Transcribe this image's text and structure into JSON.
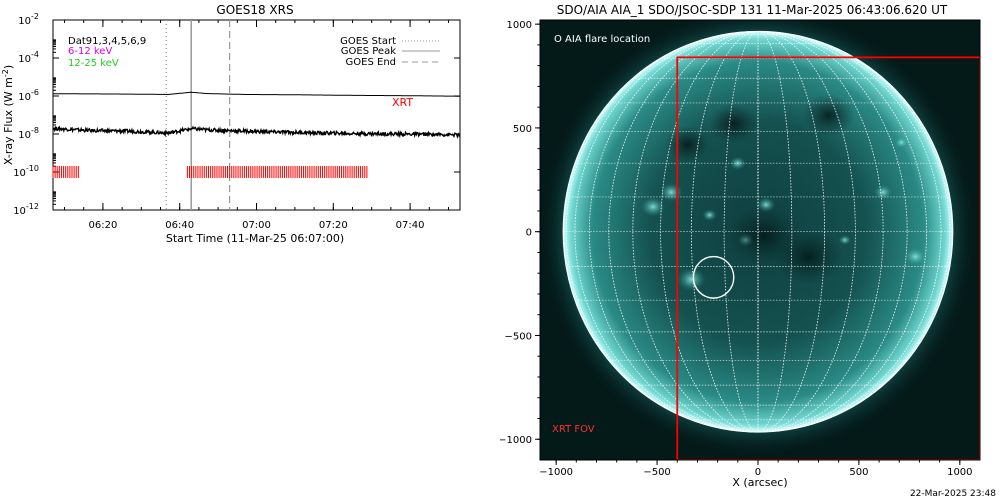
{
  "timestamp": "22-Mar-2025 23:48",
  "chart_data": [
    {
      "type": "line",
      "title": "GOES18 XRS",
      "xlabel": "Start Time (11-Mar-25 06:07:00)",
      "ylabel": "X-ray Flux (W m^-2)",
      "ylabel_main": "X-ray Flux (W m",
      "ylabel_exp": "-2",
      "ylabel_close": ")",
      "y_scale": "log",
      "ylim": [
        1e-12,
        0.01
      ],
      "x_unit": "minutes since 06:07:00",
      "xlim": [
        0,
        106
      ],
      "x_ticks": [
        {
          "value": 13,
          "label": "06:20"
        },
        {
          "value": 33,
          "label": "06:40"
        },
        {
          "value": 53,
          "label": "07:00"
        },
        {
          "value": 73,
          "label": "07:20"
        },
        {
          "value": 93,
          "label": "07:40"
        }
      ],
      "y_ticks": [
        {
          "value": -12,
          "base": "10",
          "exp": "-12"
        },
        {
          "value": -10,
          "base": "10",
          "exp": "-10"
        },
        {
          "value": -8,
          "base": "10",
          "exp": "-8"
        },
        {
          "value": -6,
          "base": "10",
          "exp": "-6"
        },
        {
          "value": -4,
          "base": "10",
          "exp": "-4"
        },
        {
          "value": -2,
          "base": "10",
          "exp": "-2"
        }
      ],
      "info_lines": [
        {
          "text": "Dat91,3,4,5,6,9",
          "color": "#000000"
        },
        {
          "text": "6-12 keV",
          "color": "#dd00dd"
        },
        {
          "text": "12-25 keV",
          "color": "#22cc22"
        }
      ],
      "legend": [
        {
          "label": "GOES Start",
          "style": "dotted"
        },
        {
          "label": "GOES Peak",
          "style": "solid"
        },
        {
          "label": "GOES End",
          "style": "dashed"
        }
      ],
      "legend_position": "top-right",
      "event_lines": [
        {
          "name": "GOES Start",
          "x": 29.5,
          "style": "dotted"
        },
        {
          "name": "GOES Peak",
          "x": 36,
          "style": "solid"
        },
        {
          "name": "GOES End",
          "x": 46,
          "style": "dashed"
        }
      ],
      "series": [
        {
          "name": "long channel",
          "color": "#000000",
          "x": [
            0,
            10,
            20,
            30,
            36,
            40,
            50,
            60,
            70,
            80,
            90,
            100,
            106
          ],
          "log_flux": [
            -5.88,
            -5.89,
            -5.9,
            -5.92,
            -5.8,
            -5.87,
            -5.92,
            -5.93,
            -5.95,
            -5.97,
            -5.98,
            -6.0,
            -6.01
          ]
        },
        {
          "name": "short channel",
          "color": "#000000",
          "x": [
            0,
            10,
            20,
            30,
            36,
            40,
            50,
            60,
            70,
            80,
            90,
            100,
            106
          ],
          "log_flux": [
            -7.7,
            -7.82,
            -7.85,
            -7.95,
            -7.72,
            -7.78,
            -7.85,
            -7.9,
            -7.95,
            -7.98,
            -8.0,
            -8.02,
            -8.05
          ]
        }
      ],
      "xrt_label": "XRT",
      "xrt_label_color": "#ff0000",
      "xrt_intervals": [
        {
          "start": 0,
          "end": 7
        },
        {
          "start": 35,
          "end": 82
        }
      ],
      "xrt_log_level": -10
    },
    {
      "type": "heatmap",
      "title": "SDO/AIA AIA_1 SDO/JSOC-SDP 131 11-Mar-2025 06:43:06.620 UT",
      "xlabel": "X (arcsec)",
      "ylabel": "",
      "xlim": [
        -1080,
        1100
      ],
      "ylim": [
        -1100,
        1020
      ],
      "x_ticks": [
        -1000,
        -500,
        0,
        500,
        1000
      ],
      "y_ticks": [
        -1000,
        -500,
        0,
        500,
        1000
      ],
      "tick_labels_x": [
        "−1000",
        "−500",
        "0",
        "500",
        "1000"
      ],
      "tick_labels_y": [
        "−1000",
        "−500",
        "0",
        "500",
        "1000"
      ],
      "solar_radius_arcsec": 965,
      "colormap": "teal",
      "flare_location_label": "O AIA flare location",
      "flare_location": {
        "x": -220,
        "y": -220,
        "radius": 100
      },
      "xrt_fov_label": "XRT FOV",
      "xrt_fov": {
        "x0": -400,
        "x1": 1100,
        "y0": -1100,
        "y1": 840
      },
      "fov_color": "#ff0000"
    }
  ]
}
